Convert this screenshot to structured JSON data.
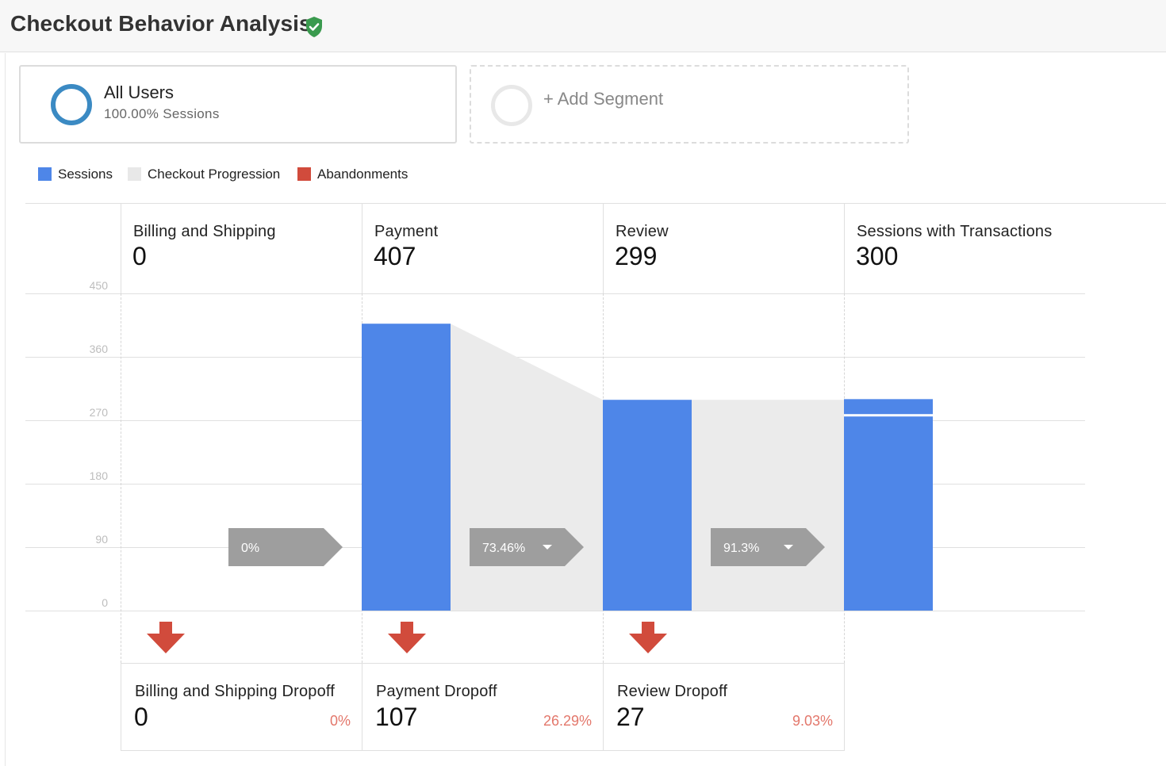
{
  "header": {
    "title": "Checkout Behavior Analysis",
    "verified_icon": "shield-check-icon",
    "verified_color": "#3a9a4e"
  },
  "segments": {
    "all_users": {
      "name": "All Users",
      "subtitle": "100.00% Sessions",
      "ring_color": "#3b8ac3"
    },
    "add_segment": {
      "label": "+ Add Segment"
    }
  },
  "legend": [
    {
      "label": "Sessions",
      "color": "#4e86e8"
    },
    {
      "label": "Checkout Progression",
      "color": "#e8e8e8"
    },
    {
      "label": "Abandonments",
      "color": "#d14b3c"
    }
  ],
  "steps": [
    {
      "name": "Billing and Shipping",
      "value": "0"
    },
    {
      "name": "Payment",
      "value": "407"
    },
    {
      "name": "Review",
      "value": "299"
    },
    {
      "name": "Sessions with Transactions",
      "value": "300"
    }
  ],
  "dropoffs": [
    {
      "name": "Billing and Shipping Dropoff",
      "value": "0",
      "percent": "0%",
      "icon": "arrow-down-icon"
    },
    {
      "name": "Payment Dropoff",
      "value": "107",
      "percent": "26.29%",
      "icon": "arrow-down-icon"
    },
    {
      "name": "Review Dropoff",
      "value": "27",
      "percent": "9.03%",
      "icon": "arrow-down-icon"
    }
  ],
  "chart_data": {
    "type": "bar",
    "categories": [
      "Billing and Shipping",
      "Payment",
      "Review",
      "Sessions with Transactions"
    ],
    "series": [
      {
        "name": "Sessions",
        "values": [
          0,
          407,
          299,
          300
        ]
      }
    ],
    "progression_rates": [
      {
        "label": "0%",
        "has_dropdown": false
      },
      {
        "label": "73.46%",
        "has_dropdown": true
      },
      {
        "label": "91.3%",
        "has_dropdown": true
      }
    ],
    "y_ticks": [
      "450",
      "360",
      "270",
      "180",
      "90",
      "0"
    ],
    "ylim": [
      0,
      450
    ],
    "grid": true,
    "colors": {
      "bar": "#4e86e8",
      "progression": "#ebebeb",
      "rate_badge": "#9e9e9e",
      "abandon_arrow": "#d14b3c"
    }
  }
}
